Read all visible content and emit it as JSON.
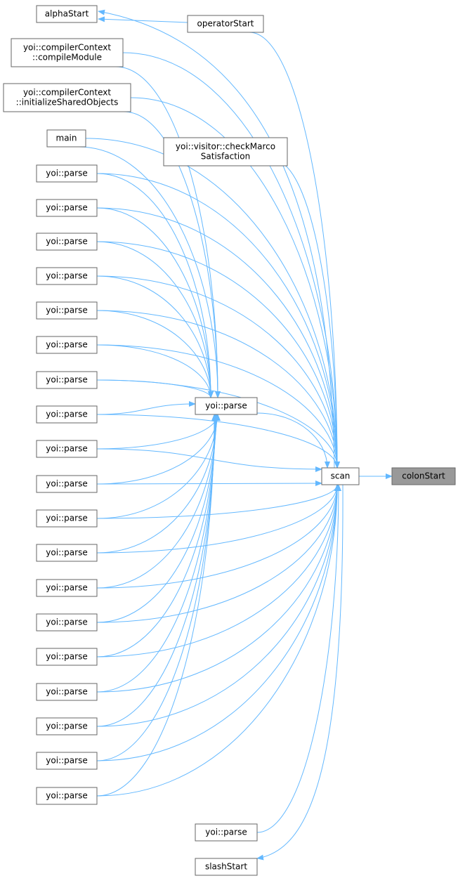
{
  "nodes": [
    {
      "lines": [
        "alphaStart"
      ]
    },
    {
      "lines": [
        "operatorStart"
      ]
    },
    {
      "lines": [
        "yoi::compilerContext",
        "::compileModule"
      ]
    },
    {
      "lines": [
        "yoi::compilerContext",
        "::initializeSharedObjects"
      ]
    },
    {
      "lines": [
        "main"
      ]
    },
    {
      "lines": [
        "yoi::visitor::checkMarco",
        "Satisfaction"
      ]
    },
    {
      "lines": [
        "yoi::parse"
      ]
    },
    {
      "lines": [
        "yoi::parse"
      ]
    },
    {
      "lines": [
        "yoi::parse"
      ]
    },
    {
      "lines": [
        "yoi::parse"
      ]
    },
    {
      "lines": [
        "yoi::parse"
      ]
    },
    {
      "lines": [
        "yoi::parse"
      ]
    },
    {
      "lines": [
        "yoi::parse"
      ]
    },
    {
      "lines": [
        "yoi::parse"
      ]
    },
    {
      "lines": [
        "yoi::parse"
      ]
    },
    {
      "lines": [
        "yoi::parse"
      ]
    },
    {
      "lines": [
        "yoi::parse"
      ]
    },
    {
      "lines": [
        "yoi::parse"
      ]
    },
    {
      "lines": [
        "yoi::parse"
      ]
    },
    {
      "lines": [
        "yoi::parse"
      ]
    },
    {
      "lines": [
        "yoi::parse"
      ]
    },
    {
      "lines": [
        "yoi::parse"
      ]
    },
    {
      "lines": [
        "yoi::parse"
      ]
    },
    {
      "lines": [
        "yoi::parse"
      ]
    },
    {
      "lines": [
        "yoi::parse"
      ]
    },
    {
      "lines": [
        "yoi::parse"
      ]
    },
    {
      "lines": [
        "scan"
      ]
    },
    {
      "lines": [
        "colonStart"
      ]
    },
    {
      "lines": [
        "yoi::parse"
      ]
    },
    {
      "lines": [
        "slashStart"
      ]
    }
  ]
}
